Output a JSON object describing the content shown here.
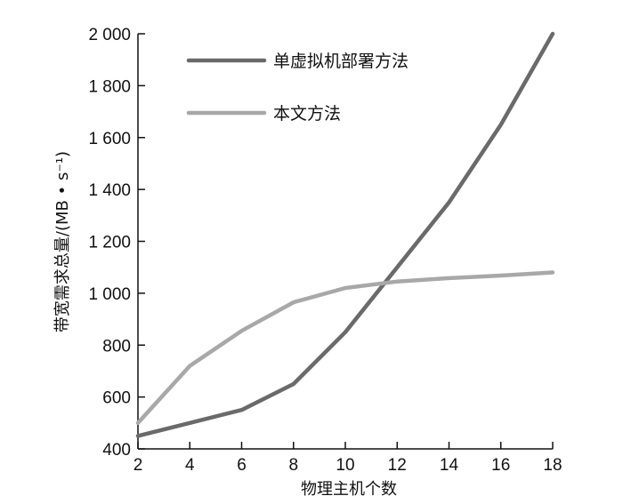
{
  "chart_data": {
    "type": "line",
    "title": "",
    "xlabel": "物理主机个数",
    "ylabel": "带宽需求总量/(MB • s⁻¹)",
    "x": [
      2,
      4,
      6,
      8,
      10,
      12,
      14,
      16,
      18
    ],
    "xticks": [
      "2",
      "4",
      "6",
      "8",
      "10",
      "12",
      "14",
      "16",
      "18"
    ],
    "yticks": [
      "400",
      "600",
      "800",
      "1 000",
      "1 200",
      "1 400",
      "1 600",
      "1 800",
      "2 000"
    ],
    "xlim": [
      2,
      18
    ],
    "ylim": [
      400,
      2000
    ],
    "grid": false,
    "legend_position": "top-left",
    "series": [
      {
        "name": "单虚拟机部署方法",
        "color": "#6a6a6a",
        "values": [
          450,
          500,
          550,
          650,
          850,
          1100,
          1350,
          1650,
          2000
        ]
      },
      {
        "name": "本文方法",
        "color": "#a8a8a8",
        "values": [
          500,
          720,
          855,
          965,
          1020,
          1045,
          1058,
          1068,
          1080
        ]
      }
    ]
  }
}
